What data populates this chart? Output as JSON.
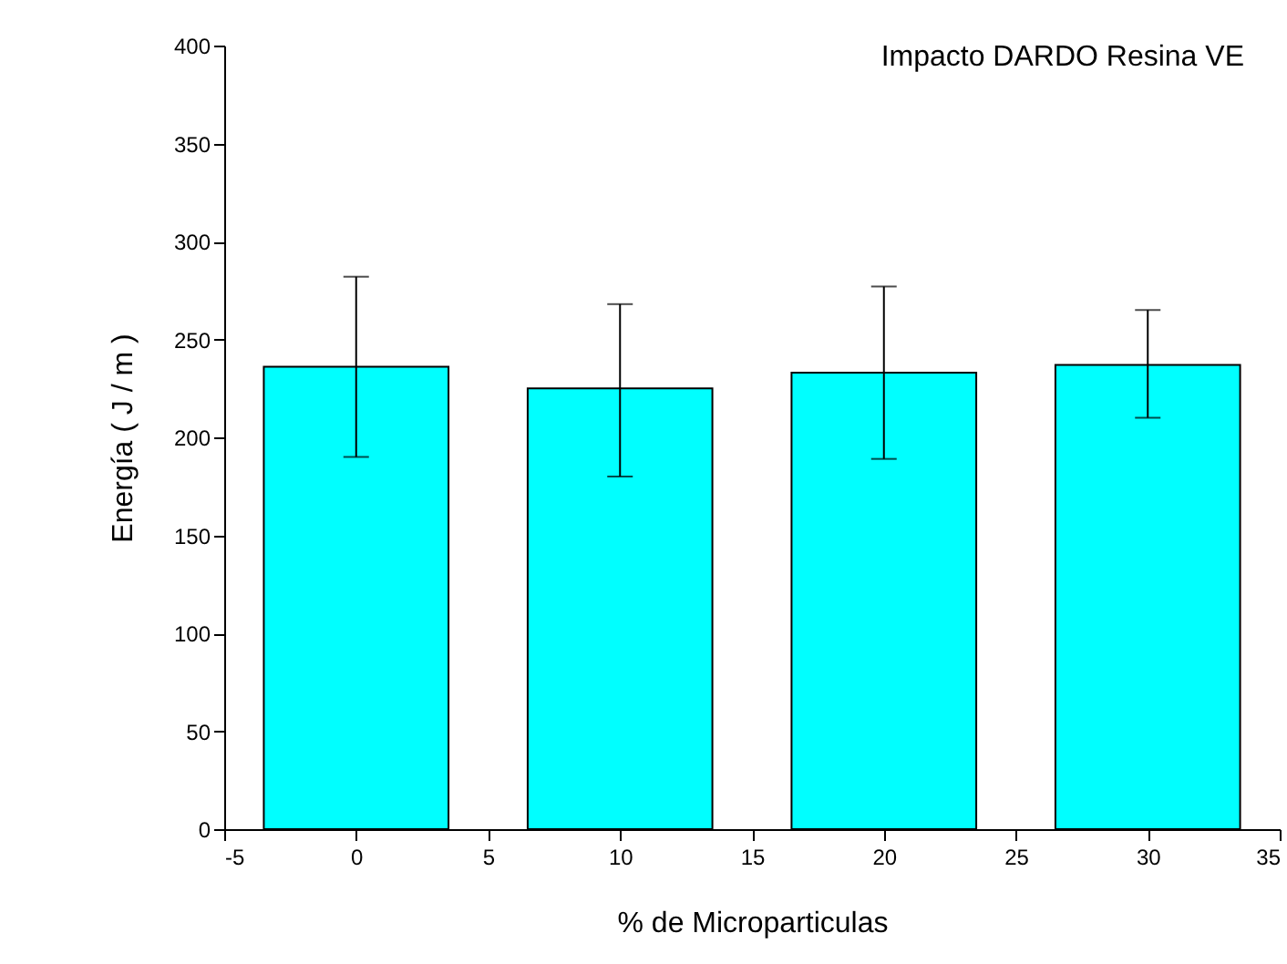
{
  "chart_data": {
    "type": "bar",
    "title": "Impacto DARDO Resina VE",
    "xlabel": "% de Microparticulas",
    "ylabel": "Energía  ( J / m )",
    "x": [
      0,
      10,
      20,
      30
    ],
    "values": [
      236,
      225,
      233,
      237
    ],
    "errors": [
      [
        190,
        282
      ],
      [
        180,
        268
      ],
      [
        189,
        277
      ],
      [
        210,
        265
      ]
    ],
    "color": "#00ffff",
    "xlim": [
      -5,
      35
    ],
    "xticks": [
      -5,
      0,
      5,
      10,
      15,
      20,
      25,
      30,
      35
    ],
    "ylim": [
      0,
      400
    ],
    "yticks": [
      0,
      50,
      100,
      150,
      200,
      250,
      300,
      350,
      400
    ],
    "grid": false
  }
}
